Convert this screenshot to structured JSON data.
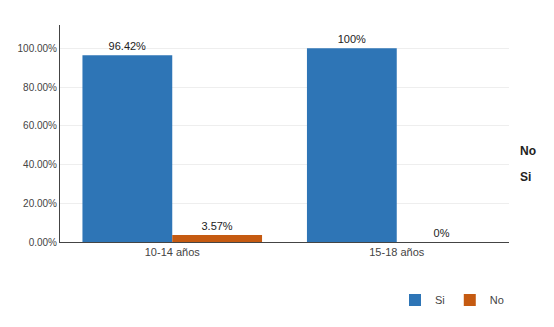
{
  "chart_data": {
    "type": "bar",
    "categories": [
      "10-14 años",
      "15-18 años"
    ],
    "series": [
      {
        "name": "Si",
        "color": "#2E75B6",
        "values": [
          96.42,
          100.0
        ],
        "value_labels": [
          "96.42%",
          "100%"
        ]
      },
      {
        "name": "No",
        "color": "#C55A11",
        "values": [
          3.57,
          0.0
        ],
        "value_labels": [
          "3.57%",
          "0%"
        ]
      }
    ],
    "ylim": [
      0,
      112
    ],
    "yticks": [
      {
        "value": 0,
        "label": "0.00%"
      },
      {
        "value": 20,
        "label": "20.00%"
      },
      {
        "value": 40,
        "label": "40.00%"
      },
      {
        "value": 60,
        "label": "60.00%"
      },
      {
        "value": 80,
        "label": "80.00%"
      },
      {
        "value": 100,
        "label": "100.00%"
      }
    ],
    "grid": true,
    "data_labels": true,
    "legend": "lower right",
    "annotations": [
      "No",
      "Si"
    ]
  }
}
